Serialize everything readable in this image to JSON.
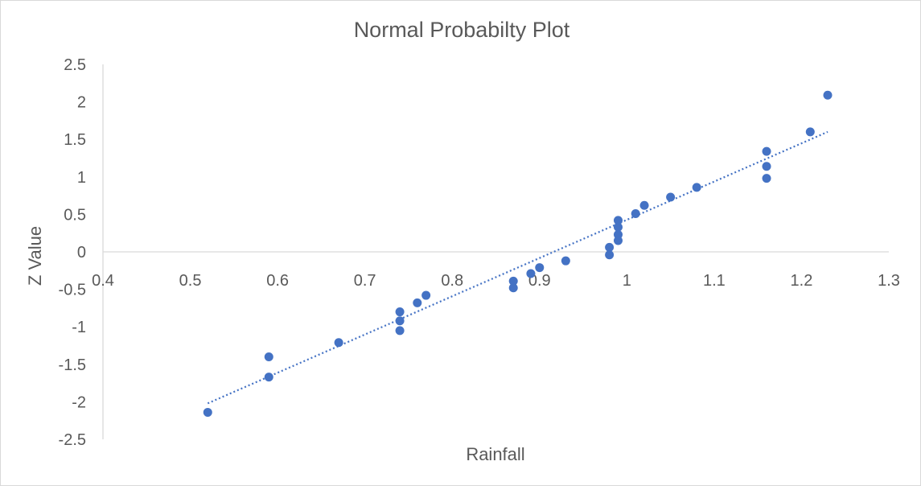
{
  "chart_data": {
    "type": "scatter",
    "title": "Normal Probabilty Plot",
    "xlabel": "Rainfall",
    "ylabel": "Z Value",
    "xlim": [
      0.4,
      1.3
    ],
    "ylim": [
      -2.5,
      2.5
    ],
    "x_ticks": [
      "0.4",
      "0.5",
      "0.6",
      "0.7",
      "0.8",
      "0.9",
      "1",
      "1.1",
      "1.2",
      "1.3"
    ],
    "y_ticks": [
      "2.5",
      "2",
      "1.5",
      "1",
      "0.5",
      "0",
      "-0.5",
      "-1",
      "-1.5",
      "-2",
      "-2.5"
    ],
    "grid": false,
    "legend": "none",
    "marker_color": "#4472c4",
    "trendline": {
      "type": "linear",
      "style": "dotted",
      "color": "#4472c4",
      "x": [
        0.52,
        1.23
      ],
      "y": [
        -2.02,
        1.6
      ]
    },
    "points": [
      {
        "x": 0.52,
        "y": -2.14
      },
      {
        "x": 0.59,
        "y": -1.67
      },
      {
        "x": 0.59,
        "y": -1.4
      },
      {
        "x": 0.67,
        "y": -1.21
      },
      {
        "x": 0.74,
        "y": -1.05
      },
      {
        "x": 0.74,
        "y": -0.92
      },
      {
        "x": 0.74,
        "y": -0.8
      },
      {
        "x": 0.76,
        "y": -0.68
      },
      {
        "x": 0.77,
        "y": -0.58
      },
      {
        "x": 0.87,
        "y": -0.48
      },
      {
        "x": 0.87,
        "y": -0.39
      },
      {
        "x": 0.89,
        "y": -0.29
      },
      {
        "x": 0.9,
        "y": -0.21
      },
      {
        "x": 0.93,
        "y": -0.12
      },
      {
        "x": 0.98,
        "y": -0.04
      },
      {
        "x": 0.98,
        "y": 0.06
      },
      {
        "x": 0.99,
        "y": 0.15
      },
      {
        "x": 0.99,
        "y": 0.23
      },
      {
        "x": 0.99,
        "y": 0.33
      },
      {
        "x": 0.99,
        "y": 0.42
      },
      {
        "x": 1.01,
        "y": 0.51
      },
      {
        "x": 1.02,
        "y": 0.62
      },
      {
        "x": 1.05,
        "y": 0.73
      },
      {
        "x": 1.08,
        "y": 0.86
      },
      {
        "x": 1.16,
        "y": 0.98
      },
      {
        "x": 1.16,
        "y": 1.14
      },
      {
        "x": 1.16,
        "y": 1.34
      },
      {
        "x": 1.21,
        "y": 1.6
      },
      {
        "x": 1.23,
        "y": 2.09
      }
    ]
  }
}
